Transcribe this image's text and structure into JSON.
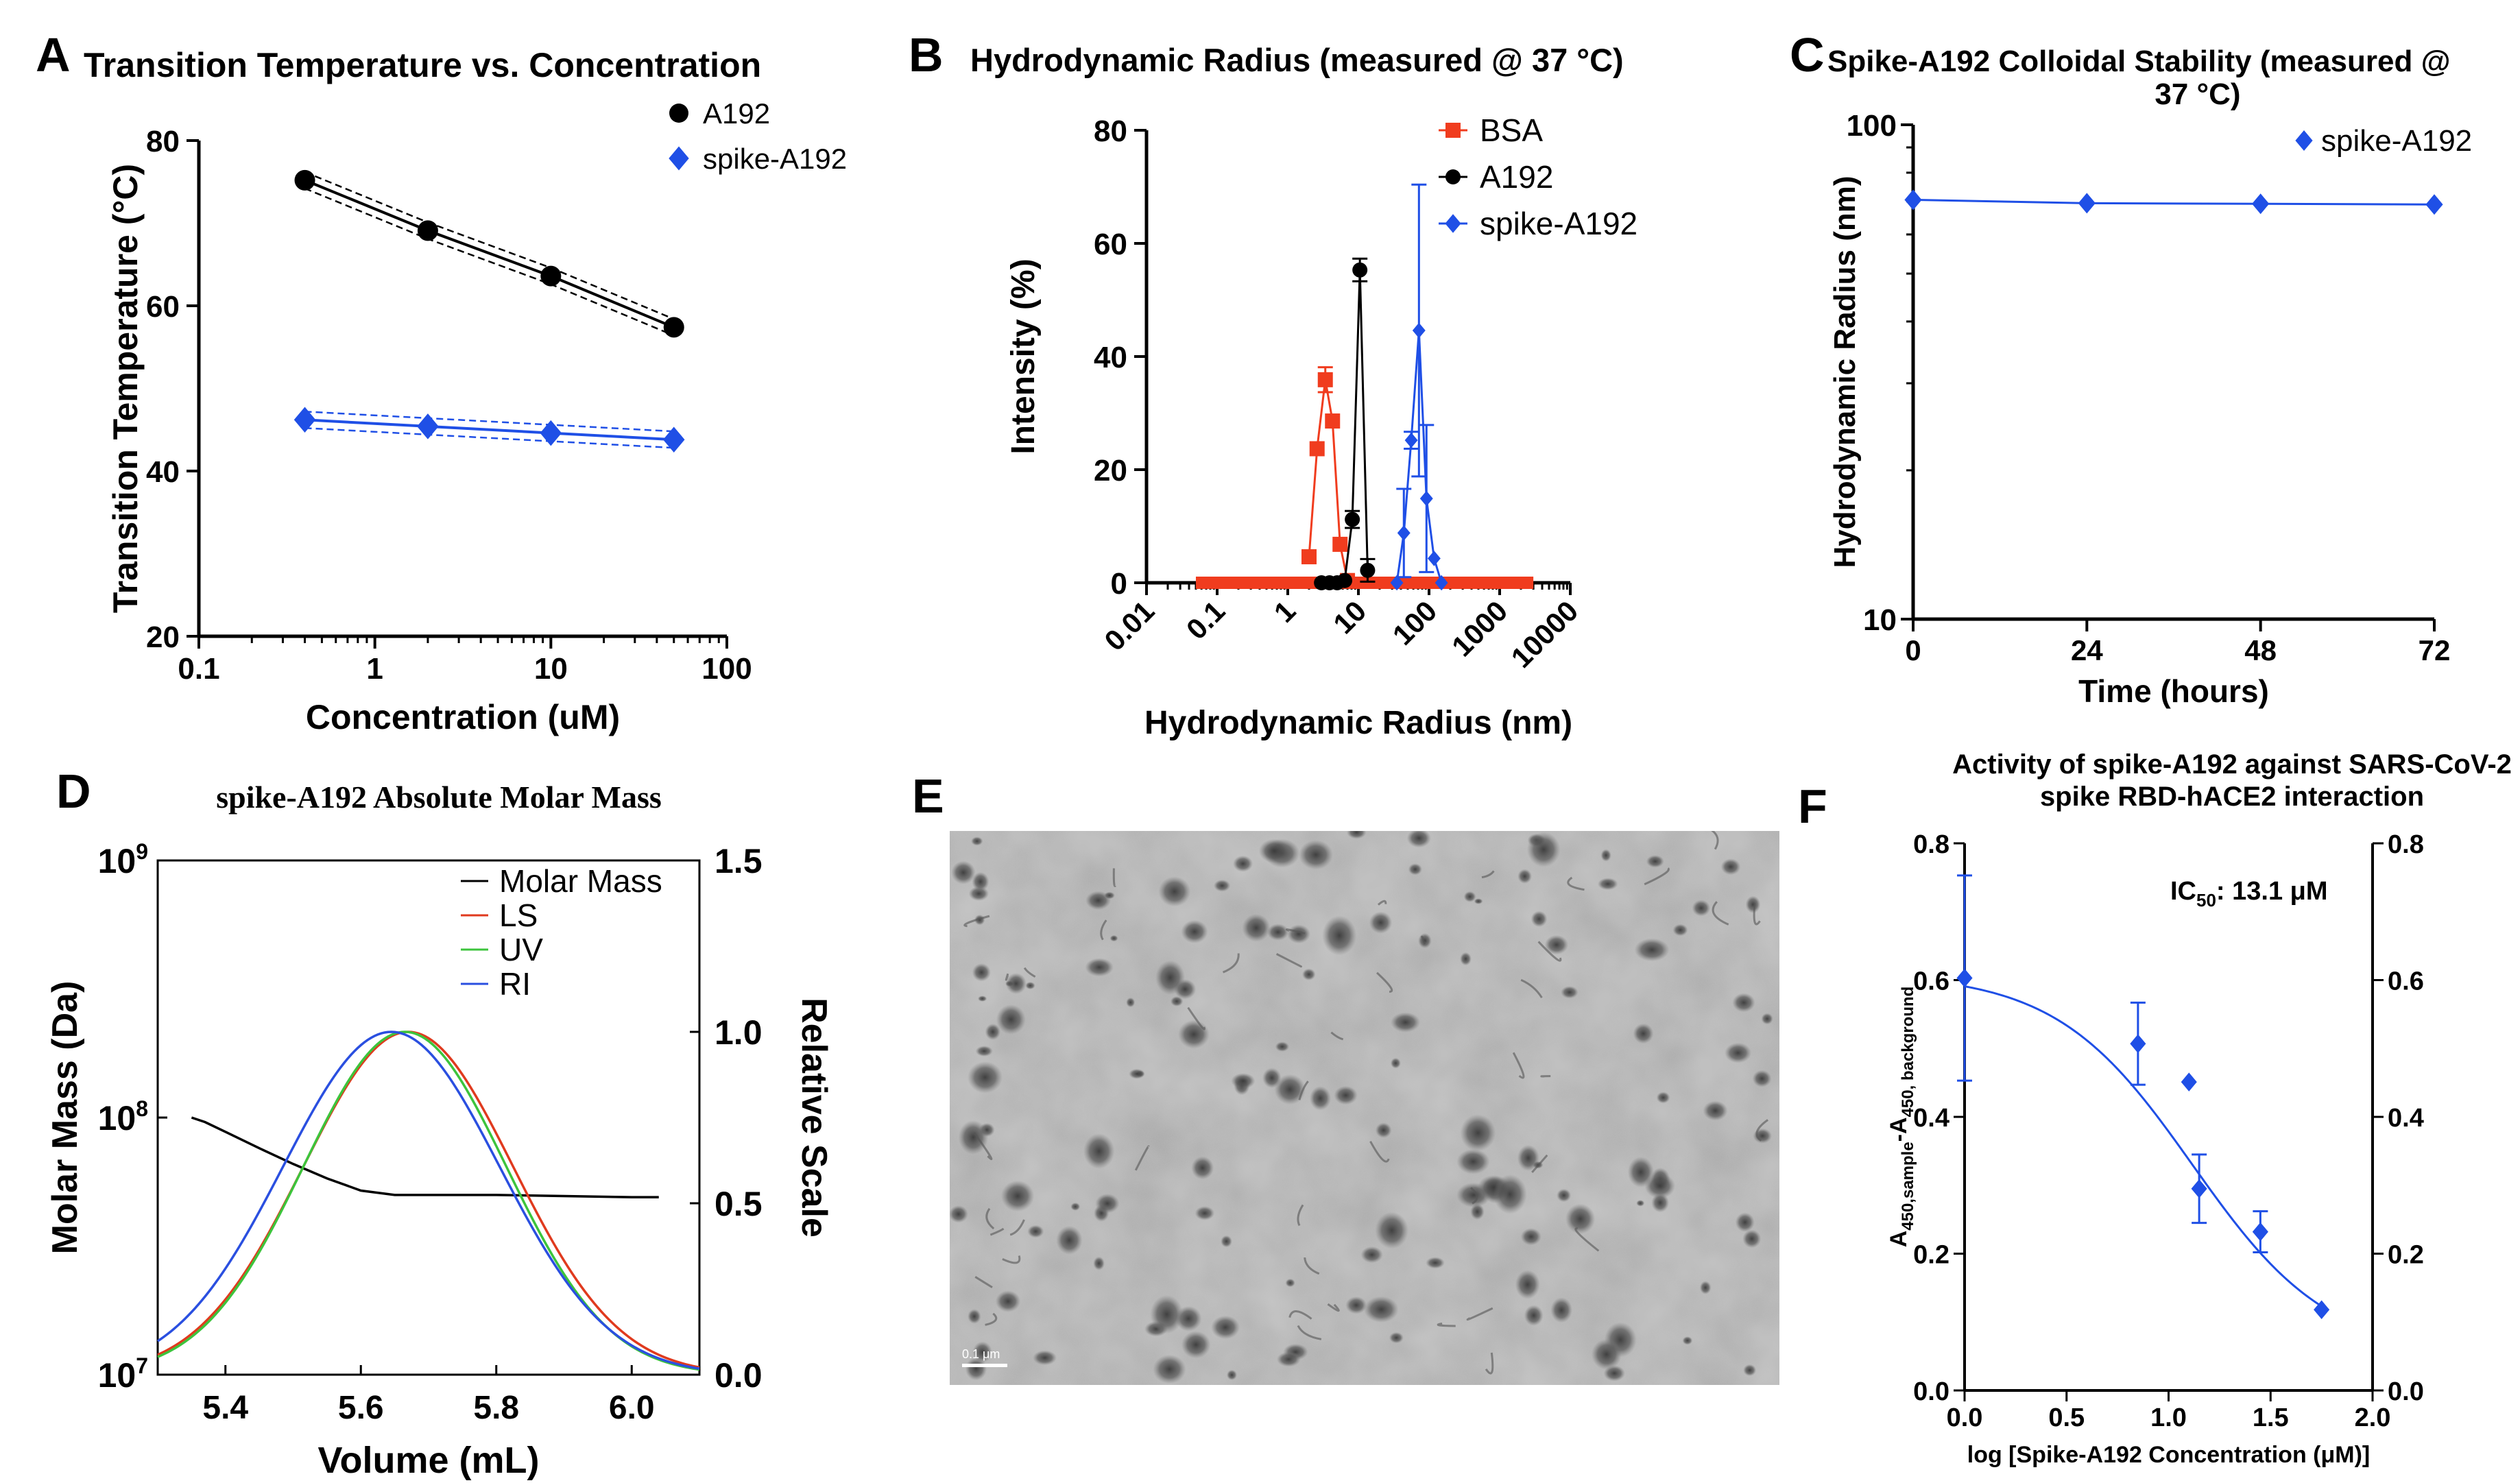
{
  "figure": {
    "panels": {
      "A": {
        "letter": "A",
        "title": "Transition Temperature vs. Concentration"
      },
      "B": {
        "letter": "B",
        "title": "Hydrodynamic Radius (measured @ 37 °C)"
      },
      "C": {
        "letter": "C",
        "title_line1": "Spike-A192 Colloidal Stability (measured @",
        "title_line2": "37 °C)"
      },
      "D": {
        "letter": "D",
        "title": "spike-A192 Absolute Molar Mass"
      },
      "E": {
        "letter": "E",
        "scale_bar_label": "0.1 μm"
      },
      "F": {
        "letter": "F",
        "title_line1": "Activity of spike-A192 against SARS-CoV-2",
        "title_line2": "spike RBD-hACE2 interaction"
      }
    }
  },
  "chart_data": [
    {
      "panel": "A",
      "type": "line",
      "title": "Transition Temperature vs. Concentration",
      "xlabel": "Concentration (uM)",
      "ylabel": "Transition Temperature (°C)",
      "xscale": "log",
      "xlim": [
        0.1,
        100
      ],
      "ylim": [
        20,
        80
      ],
      "xticks": [
        "0.1",
        "1",
        "10",
        "100"
      ],
      "yticks": [
        "20",
        "40",
        "60",
        "80"
      ],
      "legend_position": "top-right",
      "series": [
        {
          "name": "A192",
          "color": "#000000",
          "marker": "circle",
          "x": [
            0.4,
            2,
            10,
            50
          ],
          "y": [
            75.2,
            69.1,
            63.6,
            57.4
          ]
        },
        {
          "name": "spike-A192",
          "color": "#1f4fe6",
          "marker": "diamond",
          "x": [
            0.4,
            2,
            10,
            50
          ],
          "y": [
            46.2,
            45.4,
            44.6,
            43.8
          ]
        }
      ]
    },
    {
      "panel": "B",
      "type": "line",
      "title": "Hydrodynamic Radius (measured @ 37 °C)",
      "xlabel": "Hydrodynamic Radius (nm)",
      "ylabel": "Intensity (%)",
      "xscale": "log",
      "xlim": [
        0.01,
        10000
      ],
      "ylim": [
        0,
        80
      ],
      "xticks": [
        "0.01",
        "0.1",
        "1",
        "10",
        "100",
        "1000",
        "10000"
      ],
      "yticks": [
        "0",
        "20",
        "40",
        "60",
        "80"
      ],
      "legend_position": "top-right",
      "series": [
        {
          "name": "BSA",
          "color": "#f03c1e",
          "marker": "square",
          "x": [
            2.0,
            2.6,
            3.4,
            4.3,
            5.5,
            7.0
          ],
          "y": [
            4.6,
            23.7,
            35.9,
            28.6,
            6.8,
            0.4
          ],
          "err": [
            0,
            0,
            2.2,
            0,
            0,
            0
          ],
          "baseline_range": [
            0.05,
            3000
          ]
        },
        {
          "name": "A192",
          "color": "#000000",
          "marker": "circle",
          "x": [
            3.0,
            3.9,
            5.0,
            6.4,
            8.2,
            10.5,
            13.5
          ],
          "y": [
            0,
            0,
            0,
            0.4,
            11.2,
            55.3,
            2.2
          ],
          "err": [
            0,
            0,
            0,
            0,
            1.5,
            2.0,
            2.0
          ]
        },
        {
          "name": "spike-A192",
          "color": "#1f4fe6",
          "marker": "diamond",
          "x": [
            35,
            44,
            56,
            72,
            92,
            118,
            150
          ],
          "y": [
            0,
            8.8,
            25.2,
            44.6,
            14.9,
            4.3,
            0
          ],
          "err": [
            0,
            7.8,
            1.5,
            25.8,
            13.0,
            0,
            0
          ]
        }
      ]
    },
    {
      "panel": "C",
      "type": "line",
      "title": "Spike-A192 Colloidal Stability (measured @ 37 °C)",
      "xlabel": "Time (hours)",
      "ylabel": "Hydrodynamic Radius (nm)",
      "yscale": "log",
      "xlim": [
        0,
        72
      ],
      "ylim": [
        10,
        100
      ],
      "xticks": [
        "0",
        "24",
        "48",
        "72"
      ],
      "yticks": [
        "10",
        "100"
      ],
      "legend_position": "top-right",
      "series": [
        {
          "name": "spike-A192",
          "color": "#1f4fe6",
          "marker": "diamond",
          "x": [
            0,
            24,
            48,
            72
          ],
          "y": [
            70.5,
            69.4,
            69.2,
            69.0
          ]
        }
      ]
    },
    {
      "panel": "D",
      "type": "line",
      "title": "spike-A192 Absolute Molar Mass",
      "xlabel": "Volume (mL)",
      "ylabel": "Molar Mass (Da)",
      "ylabel_right": "Relative Scale",
      "yscale": "log",
      "xlim": [
        5.3,
        6.1
      ],
      "ylim": [
        10000000.0,
        1000000000.0
      ],
      "ylim_right": [
        0,
        1.5
      ],
      "xticks": [
        "5.4",
        "5.6",
        "5.8",
        "6.0"
      ],
      "yticks_right": [
        "0.0",
        "0.5",
        "1.0",
        "1.5"
      ],
      "legend_position": "top-right",
      "series": [
        {
          "name": "Molar Mass",
          "color": "#000000",
          "axis": "left",
          "x": [
            5.35,
            5.37,
            5.4,
            5.45,
            5.5,
            5.55,
            5.6,
            5.65,
            5.7,
            5.8,
            5.9,
            6.0,
            6.04
          ],
          "y": [
            100000000.0,
            96000000.0,
            88000000.0,
            76000000.0,
            66000000.0,
            58000000.0,
            52000000.0,
            50000000.0,
            50000000.0,
            50000000.0,
            49500000.0,
            49000000.0,
            49000000.0
          ]
        },
        {
          "name": "LS",
          "color": "#e03a1e",
          "axis": "right",
          "peak_volume": 5.67,
          "sigma": 0.155
        },
        {
          "name": "UV",
          "color": "#3cc43c",
          "axis": "right",
          "peak_volume": 5.665,
          "sigma": 0.15
        },
        {
          "name": "RI",
          "color": "#2a4fe0",
          "axis": "right",
          "peak_volume": 5.645,
          "sigma": 0.16
        }
      ]
    },
    {
      "panel": "F",
      "type": "scatter",
      "title": "Activity of spike-A192 against SARS-CoV-2 spike RBD-hACE2 interaction",
      "xlabel": "log [Spike-A192 Concentration (μM)]",
      "ylabel": "A450,sample-A450, background",
      "ylabel_main": "A",
      "ylabel_sub1": "450,sample",
      "ylabel_mid": "-A",
      "ylabel_sub2": "450, background",
      "annotation": "IC",
      "annotation_sub": "50",
      "annotation_value": ": 13.1 μM",
      "xlim": [
        0,
        2.0
      ],
      "ylim": [
        0,
        0.8
      ],
      "xticks": [
        "0.0",
        "0.5",
        "1.0",
        "1.5",
        "2.0"
      ],
      "yticks": [
        "0.0",
        "0.2",
        "0.4",
        "0.6",
        "0.8"
      ],
      "series": [
        {
          "name": "",
          "color": "#1f4fe6",
          "marker": "diamond",
          "x": [
            0.0,
            0.85,
            1.1,
            1.15,
            1.45,
            1.75
          ],
          "y": [
            0.603,
            0.507,
            0.451,
            0.295,
            0.232,
            0.118
          ],
          "err": [
            0.15,
            0.06,
            0,
            0.05,
            0.03,
            0
          ]
        }
      ],
      "fit": {
        "top": 0.61,
        "bottom": 0.05,
        "log_ic50": 1.117,
        "hill": 1.3
      }
    }
  ]
}
